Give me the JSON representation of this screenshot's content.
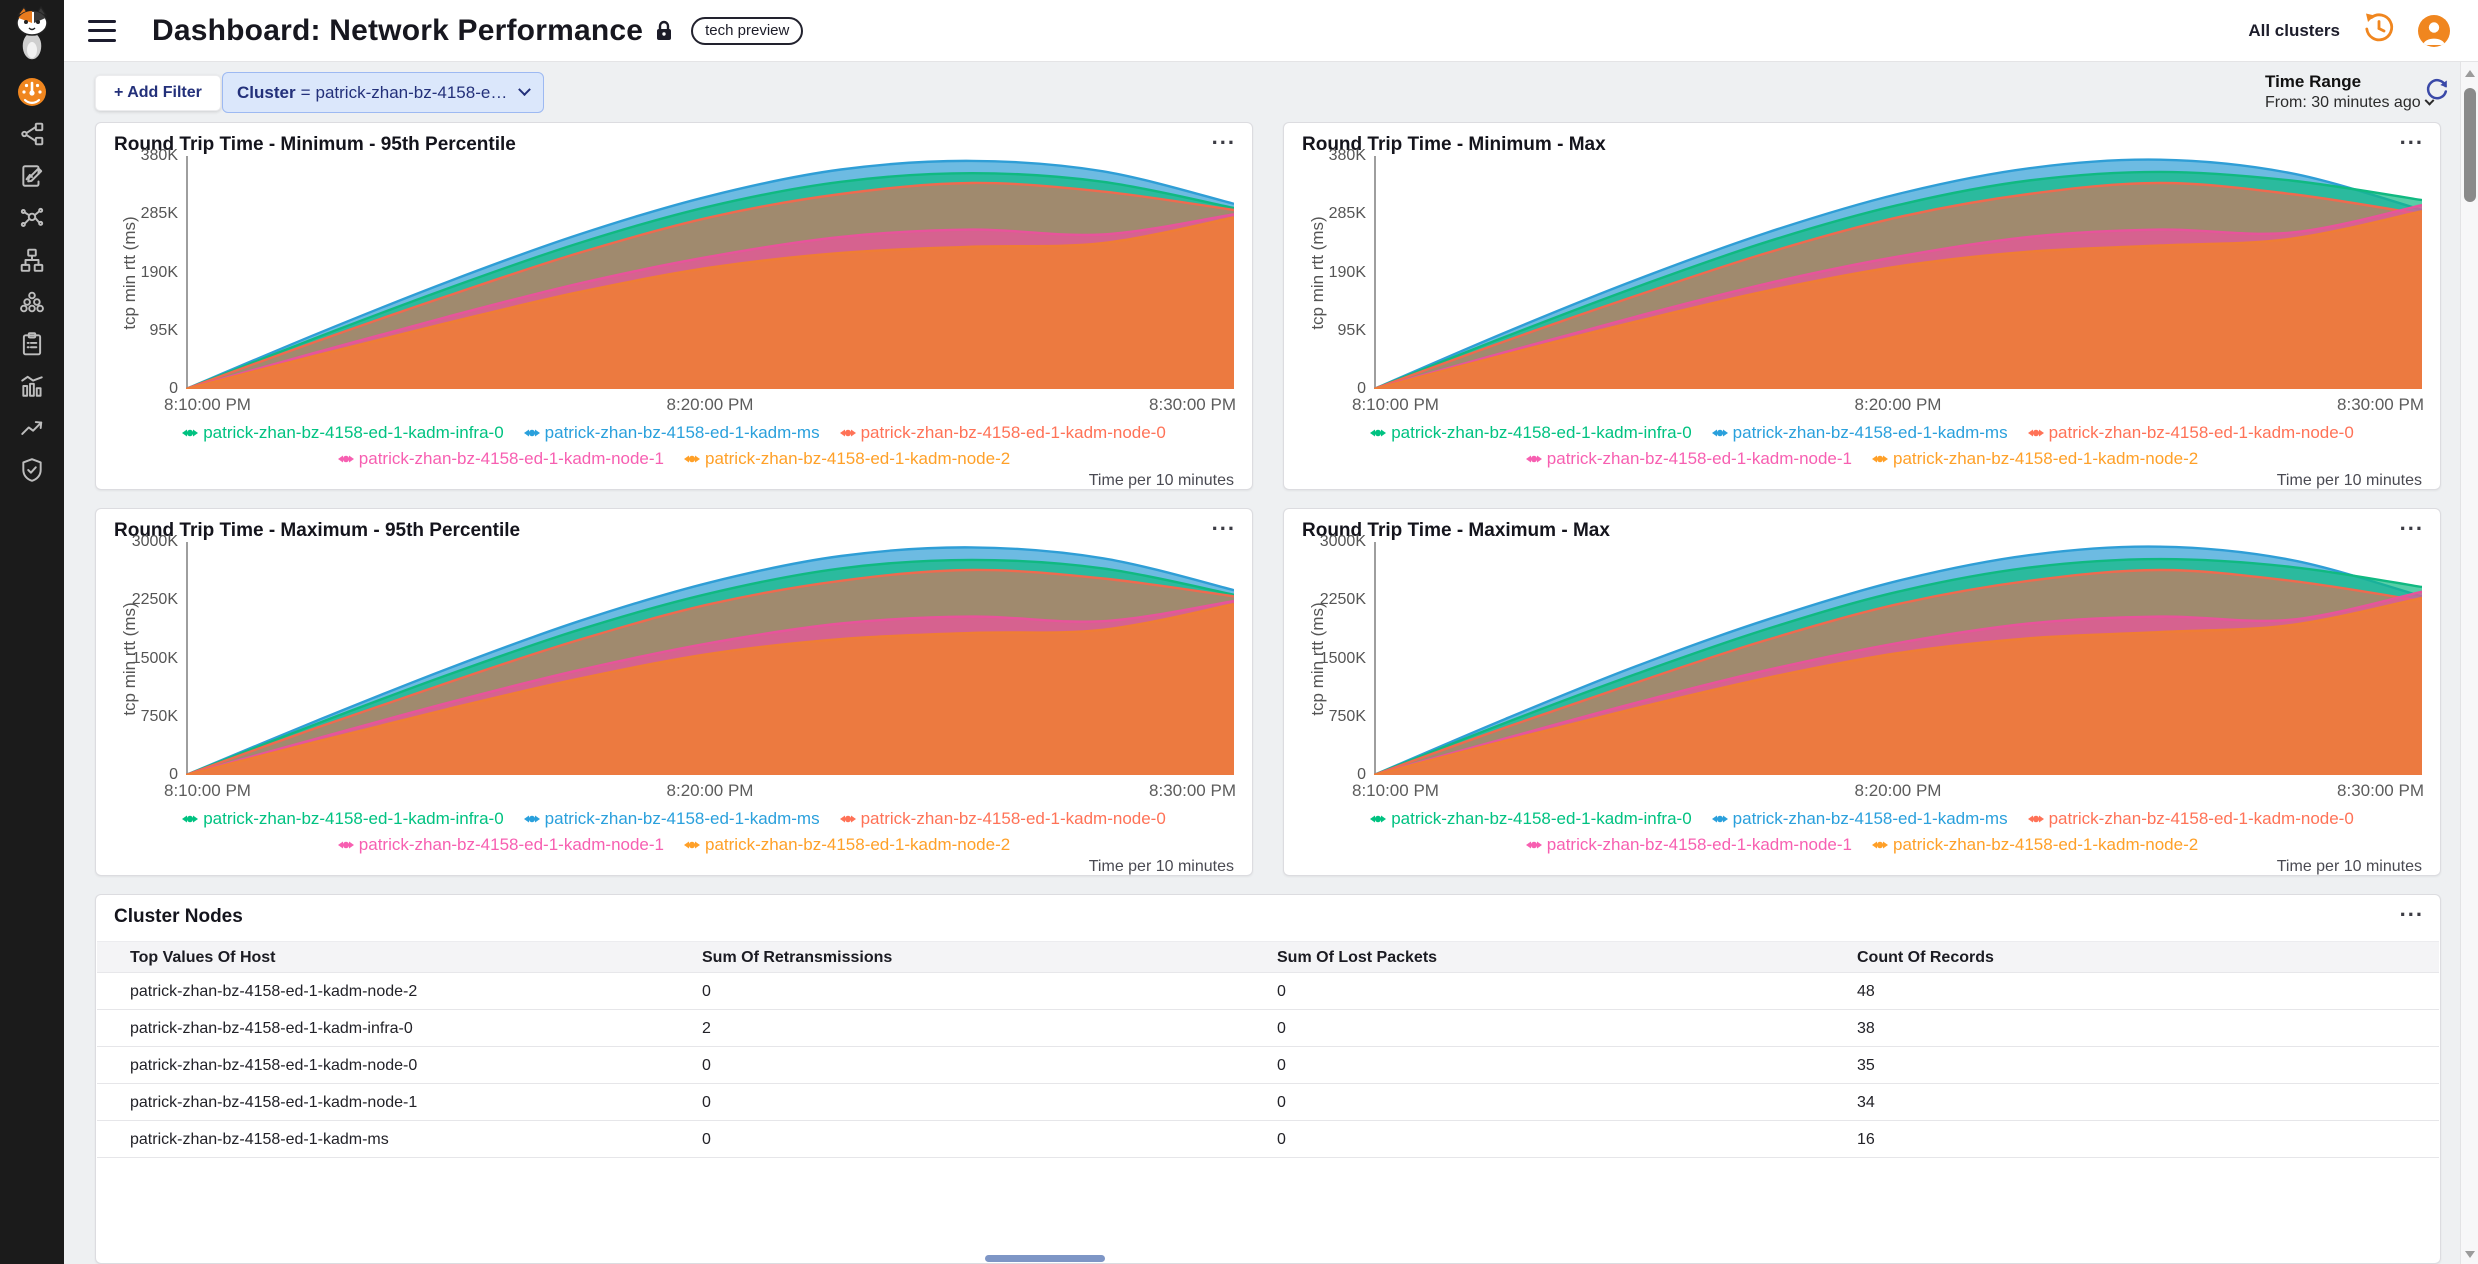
{
  "colors": {
    "accent_orange": "#f0861f",
    "navy": "#3a49a8",
    "filter_chip_bg": "#dbe7fb",
    "filter_chip_border": "#9db9f2",
    "filter_text": "#23307a",
    "sidebar_bg": "#1b1b1b",
    "sidebar_icon": "#bdbdbd",
    "page_bg": "#eef0f2",
    "panel_border": "#dcdce0",
    "text_dark": "#17171f",
    "axis_text": "#555555",
    "header_row_bg": "#f4f4f6",
    "divider": "#e6e6e9",
    "scrollbar_thumb": "#8a8a8a",
    "hscrollbar_thumb": "#7e96c6"
  },
  "topbar": {
    "title": "Dashboard: Network Performance",
    "badge": "tech preview",
    "all_clusters_label": "All clusters"
  },
  "sidebar": {
    "icons": [
      "calico-cat-logo",
      "dashboard-gauge",
      "service-graph",
      "policies",
      "flow-visualizations",
      "network-sets",
      "endpoints",
      "compliance-reports",
      "metrics-charts",
      "threat-trends",
      "security-shield"
    ]
  },
  "filter_bar": {
    "add_filter_label": "+ Add Filter",
    "cluster_filter": {
      "field": "Cluster",
      "operator": "=",
      "value": "patrick-zhan-bz-4158-e…"
    }
  },
  "time_range": {
    "label": "Time Range",
    "value": "From: 30 minutes ago"
  },
  "panel_menu_label": "...",
  "chart_data": [
    {
      "type": "area",
      "title": "Round Trip Time - Minimum - 95th Percentile",
      "ylabel": "tcp min rtt (ms)",
      "footer": "Time per 10 minutes",
      "x_ticks": [
        "8:10:00 PM",
        "8:20:00 PM",
        "8:30:00 PM"
      ],
      "y_ticks": [
        "0",
        "95K",
        "190K",
        "285K",
        "380K"
      ],
      "ylim_k": [
        0,
        380
      ],
      "legend_rows": [
        [
          0,
          1,
          2
        ],
        [
          3,
          4
        ]
      ],
      "draw_order": [
        1,
        0,
        2,
        3,
        4
      ],
      "series": [
        {
          "name": "patrick-zhan-bz-4158-ed-1-kadm-infra-0",
          "color": "#10b981",
          "legend_color": "#00c281",
          "opacity": 0.7,
          "values_k": [
            0,
            84,
            164,
            238,
            298,
            338,
            352,
            338,
            295
          ]
        },
        {
          "name": "patrick-zhan-bz-4158-ed-1-kadm-ms",
          "color": "#2f9ed6",
          "legend_color": "#2aa0dc",
          "opacity": 0.7,
          "values_k": [
            0,
            90,
            175,
            252,
            315,
            358,
            372,
            355,
            302
          ]
        },
        {
          "name": "patrick-zhan-bz-4158-ed-1-kadm-node-0",
          "color": "#ef6a4f",
          "legend_color": "#ff7257",
          "opacity": 0.6,
          "values_k": [
            0,
            78,
            152,
            222,
            280,
            318,
            336,
            322,
            292
          ]
        },
        {
          "name": "patrick-zhan-bz-4158-ed-1-kadm-node-1",
          "color": "#e8549b",
          "legend_color": "#f75fb1",
          "opacity": 0.75,
          "values_k": [
            0,
            60,
            118,
            172,
            216,
            248,
            260,
            252,
            285
          ]
        },
        {
          "name": "patrick-zhan-bz-4158-ed-1-kadm-node-2",
          "color": "#ef7d35",
          "legend_color": "#ffa028",
          "opacity": 0.88,
          "values_k": [
            0,
            55,
            108,
            158,
            198,
            222,
            232,
            238,
            280
          ]
        }
      ]
    },
    {
      "type": "area",
      "title": "Round Trip Time - Minimum - Max",
      "ylabel": "tcp min rtt (ms)",
      "footer": "Time per 10 minutes",
      "x_ticks": [
        "8:10:00 PM",
        "8:20:00 PM",
        "8:30:00 PM"
      ],
      "y_ticks": [
        "0",
        "95K",
        "190K",
        "285K",
        "380K"
      ],
      "ylim_k": [
        0,
        380
      ],
      "legend_rows": [
        [
          0,
          1,
          2
        ],
        [
          3,
          4
        ]
      ],
      "draw_order": [
        1,
        0,
        2,
        3,
        4
      ],
      "series": [
        {
          "name": "patrick-zhan-bz-4158-ed-1-kadm-infra-0",
          "color": "#10b981",
          "legend_color": "#00c281",
          "opacity": 0.7,
          "values_k": [
            0,
            85,
            166,
            240,
            300,
            340,
            354,
            340,
            308
          ]
        },
        {
          "name": "patrick-zhan-bz-4158-ed-1-kadm-ms",
          "color": "#2f9ed6",
          "legend_color": "#2aa0dc",
          "opacity": 0.7,
          "values_k": [
            0,
            92,
            178,
            255,
            318,
            360,
            374,
            352,
            292
          ]
        },
        {
          "name": "patrick-zhan-bz-4158-ed-1-kadm-node-0",
          "color": "#ef6a4f",
          "legend_color": "#ff7257",
          "opacity": 0.6,
          "values_k": [
            0,
            78,
            152,
            222,
            280,
            318,
            336,
            318,
            285
          ]
        },
        {
          "name": "patrick-zhan-bz-4158-ed-1-kadm-node-1",
          "color": "#e8549b",
          "legend_color": "#f75fb1",
          "opacity": 0.75,
          "values_k": [
            0,
            60,
            118,
            172,
            216,
            248,
            260,
            255,
            300
          ]
        },
        {
          "name": "patrick-zhan-bz-4158-ed-1-kadm-node-2",
          "color": "#ef7d35",
          "legend_color": "#ffa028",
          "opacity": 0.88,
          "values_k": [
            0,
            56,
            110,
            160,
            200,
            224,
            234,
            245,
            290
          ]
        }
      ]
    },
    {
      "type": "area",
      "title": "Round Trip Time - Maximum - 95th Percentile",
      "ylabel": "tcp min rtt (ms)",
      "footer": "Time per 10 minutes",
      "x_ticks": [
        "8:10:00 PM",
        "8:20:00 PM",
        "8:30:00 PM"
      ],
      "y_ticks": [
        "0",
        "750K",
        "1500K",
        "2250K",
        "3000K"
      ],
      "ylim_k": [
        0,
        3000
      ],
      "legend_rows": [
        [
          0,
          1,
          2
        ],
        [
          3,
          4
        ]
      ],
      "draw_order": [
        1,
        0,
        2,
        3,
        4
      ],
      "series": [
        {
          "name": "patrick-zhan-bz-4158-ed-1-kadm-infra-0",
          "color": "#10b981",
          "legend_color": "#00c281",
          "opacity": 0.7,
          "values_k": [
            0,
            660,
            1290,
            1870,
            2340,
            2660,
            2770,
            2660,
            2320
          ]
        },
        {
          "name": "patrick-zhan-bz-4158-ed-1-kadm-ms",
          "color": "#2f9ed6",
          "legend_color": "#2aa0dc",
          "opacity": 0.7,
          "values_k": [
            0,
            700,
            1370,
            1980,
            2480,
            2820,
            2930,
            2790,
            2380
          ]
        },
        {
          "name": "patrick-zhan-bz-4158-ed-1-kadm-node-0",
          "color": "#ef6a4f",
          "legend_color": "#ff7257",
          "opacity": 0.6,
          "values_k": [
            0,
            610,
            1190,
            1740,
            2200,
            2500,
            2640,
            2530,
            2300
          ]
        },
        {
          "name": "patrick-zhan-bz-4158-ed-1-kadm-node-1",
          "color": "#e8549b",
          "legend_color": "#f75fb1",
          "opacity": 0.75,
          "values_k": [
            0,
            470,
            930,
            1350,
            1700,
            1950,
            2040,
            1980,
            2240
          ]
        },
        {
          "name": "patrick-zhan-bz-4158-ed-1-kadm-node-2",
          "color": "#ef7d35",
          "legend_color": "#ffa028",
          "opacity": 0.88,
          "values_k": [
            0,
            430,
            850,
            1240,
            1560,
            1750,
            1830,
            1870,
            2200
          ]
        }
      ]
    },
    {
      "type": "area",
      "title": "Round Trip Time - Maximum - Max",
      "ylabel": "tcp min rtt (ms)",
      "footer": "Time per 10 minutes",
      "x_ticks": [
        "8:10:00 PM",
        "8:20:00 PM",
        "8:30:00 PM"
      ],
      "y_ticks": [
        "0",
        "750K",
        "1500K",
        "2250K",
        "3000K"
      ],
      "ylim_k": [
        0,
        3000
      ],
      "legend_rows": [
        [
          0,
          1,
          2
        ],
        [
          3,
          4
        ]
      ],
      "draw_order": [
        1,
        0,
        2,
        3,
        4
      ],
      "series": [
        {
          "name": "patrick-zhan-bz-4158-ed-1-kadm-infra-0",
          "color": "#10b981",
          "legend_color": "#00c281",
          "opacity": 0.7,
          "values_k": [
            0,
            670,
            1300,
            1880,
            2360,
            2670,
            2780,
            2680,
            2420
          ]
        },
        {
          "name": "patrick-zhan-bz-4158-ed-1-kadm-ms",
          "color": "#2f9ed6",
          "legend_color": "#2aa0dc",
          "opacity": 0.7,
          "values_k": [
            0,
            720,
            1400,
            2000,
            2500,
            2830,
            2940,
            2770,
            2300
          ]
        },
        {
          "name": "patrick-zhan-bz-4158-ed-1-kadm-node-0",
          "color": "#ef6a4f",
          "legend_color": "#ff7257",
          "opacity": 0.6,
          "values_k": [
            0,
            610,
            1190,
            1740,
            2200,
            2500,
            2640,
            2500,
            2240
          ]
        },
        {
          "name": "patrick-zhan-bz-4158-ed-1-kadm-node-1",
          "color": "#e8549b",
          "legend_color": "#f75fb1",
          "opacity": 0.75,
          "values_k": [
            0,
            470,
            930,
            1350,
            1700,
            1950,
            2040,
            2000,
            2360
          ]
        },
        {
          "name": "patrick-zhan-bz-4158-ed-1-kadm-node-2",
          "color": "#ef7d35",
          "legend_color": "#ffa028",
          "opacity": 0.88,
          "values_k": [
            0,
            440,
            860,
            1250,
            1570,
            1760,
            1840,
            1930,
            2280
          ]
        }
      ]
    }
  ],
  "table": {
    "title": "Cluster Nodes",
    "columns": [
      "Top Values Of Host",
      "Sum Of Retransmissions",
      "Sum Of Lost Packets",
      "Count Of Records"
    ],
    "rows": [
      [
        "patrick-zhan-bz-4158-ed-1-kadm-node-2",
        "0",
        "0",
        "48"
      ],
      [
        "patrick-zhan-bz-4158-ed-1-kadm-infra-0",
        "2",
        "0",
        "38"
      ],
      [
        "patrick-zhan-bz-4158-ed-1-kadm-node-0",
        "0",
        "0",
        "35"
      ],
      [
        "patrick-zhan-bz-4158-ed-1-kadm-node-1",
        "0",
        "0",
        "34"
      ],
      [
        "patrick-zhan-bz-4158-ed-1-kadm-ms",
        "0",
        "0",
        "16"
      ]
    ]
  }
}
